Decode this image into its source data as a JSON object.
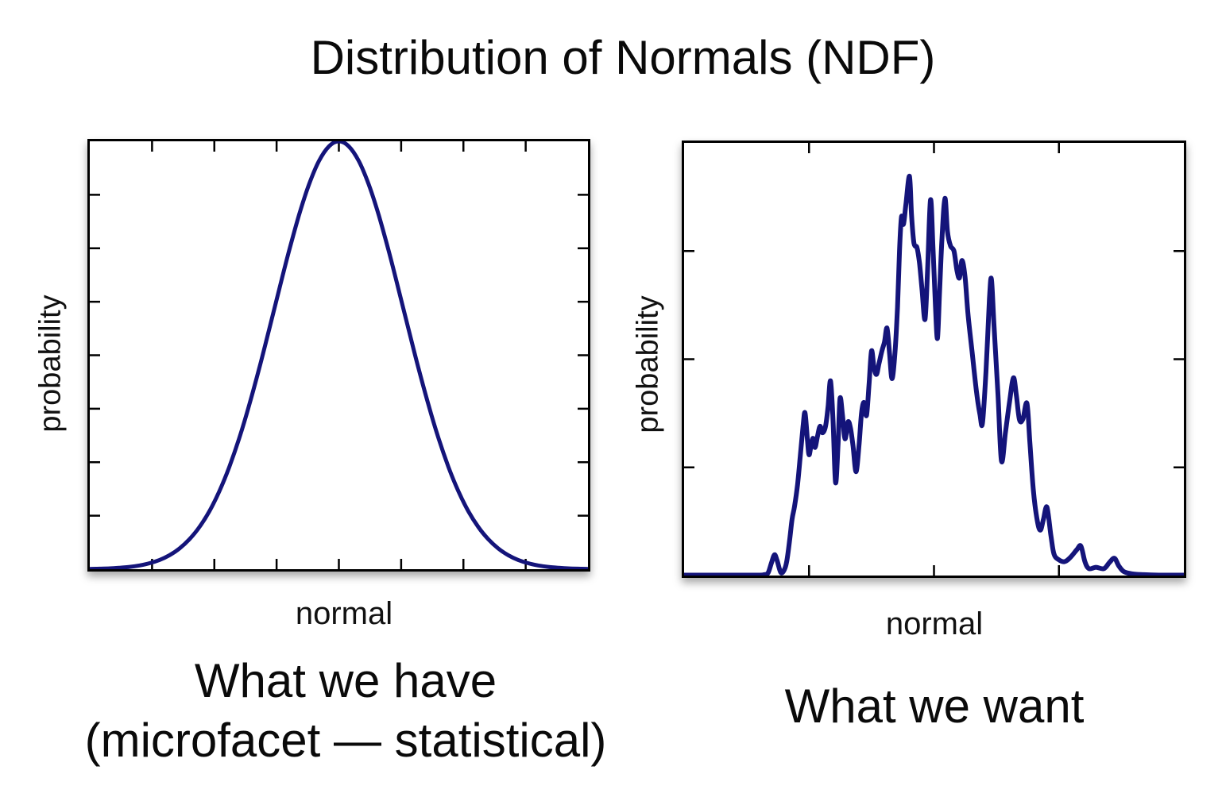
{
  "title": "Distribution of Normals (NDF)",
  "colors": {
    "background": "#ffffff",
    "frame": "#000000",
    "text": "#0a0a0a",
    "curve": "#14147a"
  },
  "chart_data": [
    {
      "id": "what-we-have",
      "type": "line",
      "xlabel": "normal",
      "ylabel": "probability",
      "caption_line1": "What we have",
      "caption_line2": "(microfacet — statistical)",
      "line_color": "#14147a",
      "line_width": 5,
      "x_tick_count": 7,
      "y_tick_count": 7,
      "x_range": [
        0,
        1
      ],
      "y_range": [
        0,
        1
      ],
      "gaussian": {
        "mean": 0.5,
        "sigma": 0.13,
        "amplitude": 1.0
      },
      "points": [
        [
          0.0,
          0.0006
        ],
        [
          0.02,
          0.0011
        ],
        [
          0.04,
          0.0019
        ],
        [
          0.06,
          0.0033
        ],
        [
          0.08,
          0.0054
        ],
        [
          0.1,
          0.0088
        ],
        [
          0.12,
          0.0139
        ],
        [
          0.14,
          0.0216
        ],
        [
          0.16,
          0.0327
        ],
        [
          0.18,
          0.0484
        ],
        [
          0.2,
          0.0699
        ],
        [
          0.22,
          0.0983
        ],
        [
          0.24,
          0.1353
        ],
        [
          0.26,
          0.1819
        ],
        [
          0.28,
          0.2388
        ],
        [
          0.3,
          0.3062
        ],
        [
          0.32,
          0.3835
        ],
        [
          0.34,
          0.469
        ],
        [
          0.36,
          0.56
        ],
        [
          0.38,
          0.653
        ],
        [
          0.4,
          0.7439
        ],
        [
          0.42,
          0.8275
        ],
        [
          0.44,
          0.899
        ],
        [
          0.46,
          0.9538
        ],
        [
          0.48,
          0.9882
        ],
        [
          0.5,
          1.0
        ],
        [
          0.52,
          0.9882
        ],
        [
          0.54,
          0.9538
        ],
        [
          0.56,
          0.899
        ],
        [
          0.58,
          0.8275
        ],
        [
          0.6,
          0.7439
        ],
        [
          0.62,
          0.653
        ],
        [
          0.64,
          0.56
        ],
        [
          0.66,
          0.469
        ],
        [
          0.68,
          0.3835
        ],
        [
          0.7,
          0.3062
        ],
        [
          0.72,
          0.2388
        ],
        [
          0.74,
          0.1819
        ],
        [
          0.76,
          0.1353
        ],
        [
          0.78,
          0.0983
        ],
        [
          0.8,
          0.0699
        ],
        [
          0.82,
          0.0484
        ],
        [
          0.84,
          0.0327
        ],
        [
          0.86,
          0.0216
        ],
        [
          0.88,
          0.0139
        ],
        [
          0.9,
          0.0088
        ],
        [
          0.92,
          0.0054
        ],
        [
          0.94,
          0.0033
        ],
        [
          0.96,
          0.0019
        ],
        [
          0.98,
          0.0011
        ],
        [
          1.0,
          0.0006
        ]
      ]
    },
    {
      "id": "what-we-want",
      "type": "line",
      "xlabel": "normal",
      "ylabel": "probability",
      "caption_line1": "What we want",
      "line_color": "#14147a",
      "line_width": 6,
      "x_tick_count": 3,
      "y_tick_count": 3,
      "x_range": [
        0,
        1
      ],
      "y_range": [
        0,
        1
      ],
      "points": [
        [
          0.0,
          0.001
        ],
        [
          0.1,
          0.001
        ],
        [
          0.149,
          0.001
        ],
        [
          0.16,
          0.002
        ],
        [
          0.168,
          0.006
        ],
        [
          0.175,
          0.03
        ],
        [
          0.181,
          0.048
        ],
        [
          0.186,
          0.035
        ],
        [
          0.193,
          0.008
        ],
        [
          0.199,
          0.01
        ],
        [
          0.205,
          0.03
        ],
        [
          0.211,
          0.08
        ],
        [
          0.216,
          0.13
        ],
        [
          0.221,
          0.16
        ],
        [
          0.227,
          0.21
        ],
        [
          0.232,
          0.27
        ],
        [
          0.238,
          0.345
        ],
        [
          0.242,
          0.376
        ],
        [
          0.247,
          0.31
        ],
        [
          0.25,
          0.279
        ],
        [
          0.254,
          0.3
        ],
        [
          0.258,
          0.317
        ],
        [
          0.262,
          0.296
        ],
        [
          0.267,
          0.322
        ],
        [
          0.272,
          0.345
        ],
        [
          0.277,
          0.33
        ],
        [
          0.283,
          0.345
        ],
        [
          0.288,
          0.39
        ],
        [
          0.293,
          0.45
        ],
        [
          0.298,
          0.36
        ],
        [
          0.303,
          0.215
        ],
        [
          0.308,
          0.3
        ],
        [
          0.312,
          0.409
        ],
        [
          0.317,
          0.37
        ],
        [
          0.322,
          0.316
        ],
        [
          0.328,
          0.355
        ],
        [
          0.333,
          0.34
        ],
        [
          0.338,
          0.3
        ],
        [
          0.344,
          0.24
        ],
        [
          0.35,
          0.3
        ],
        [
          0.355,
          0.375
        ],
        [
          0.36,
          0.4
        ],
        [
          0.365,
          0.37
        ],
        [
          0.37,
          0.44
        ],
        [
          0.375,
          0.519
        ],
        [
          0.38,
          0.48
        ],
        [
          0.385,
          0.465
        ],
        [
          0.39,
          0.49
        ],
        [
          0.396,
          0.52
        ],
        [
          0.401,
          0.54
        ],
        [
          0.406,
          0.572
        ],
        [
          0.411,
          0.515
        ],
        [
          0.416,
          0.455
        ],
        [
          0.422,
          0.515
        ],
        [
          0.427,
          0.62
        ],
        [
          0.431,
          0.75
        ],
        [
          0.435,
          0.829
        ],
        [
          0.439,
          0.812
        ],
        [
          0.444,
          0.86
        ],
        [
          0.451,
          0.923
        ],
        [
          0.455,
          0.835
        ],
        [
          0.46,
          0.768
        ],
        [
          0.466,
          0.758
        ],
        [
          0.471,
          0.722
        ],
        [
          0.476,
          0.662
        ],
        [
          0.482,
          0.592
        ],
        [
          0.487,
          0.7
        ],
        [
          0.493,
          0.868
        ],
        [
          0.498,
          0.76
        ],
        [
          0.503,
          0.62
        ],
        [
          0.507,
          0.548
        ],
        [
          0.511,
          0.65
        ],
        [
          0.516,
          0.78
        ],
        [
          0.522,
          0.872
        ],
        [
          0.527,
          0.795
        ],
        [
          0.533,
          0.762
        ],
        [
          0.54,
          0.75
        ],
        [
          0.546,
          0.705
        ],
        [
          0.551,
          0.688
        ],
        [
          0.556,
          0.728
        ],
        [
          0.562,
          0.692
        ],
        [
          0.568,
          0.605
        ],
        [
          0.576,
          0.52
        ],
        [
          0.585,
          0.425
        ],
        [
          0.592,
          0.372
        ],
        [
          0.597,
          0.352
        ],
        [
          0.604,
          0.47
        ],
        [
          0.611,
          0.64
        ],
        [
          0.615,
          0.685
        ],
        [
          0.62,
          0.58
        ],
        [
          0.628,
          0.42
        ],
        [
          0.635,
          0.265
        ],
        [
          0.643,
          0.33
        ],
        [
          0.651,
          0.4
        ],
        [
          0.659,
          0.457
        ],
        [
          0.665,
          0.415
        ],
        [
          0.671,
          0.36
        ],
        [
          0.678,
          0.362
        ],
        [
          0.686,
          0.398
        ],
        [
          0.692,
          0.305
        ],
        [
          0.699,
          0.195
        ],
        [
          0.707,
          0.125
        ],
        [
          0.713,
          0.105
        ],
        [
          0.719,
          0.13
        ],
        [
          0.726,
          0.158
        ],
        [
          0.734,
          0.092
        ],
        [
          0.74,
          0.05
        ],
        [
          0.749,
          0.037
        ],
        [
          0.761,
          0.032
        ],
        [
          0.773,
          0.042
        ],
        [
          0.786,
          0.06
        ],
        [
          0.794,
          0.068
        ],
        [
          0.802,
          0.032
        ],
        [
          0.81,
          0.016
        ],
        [
          0.824,
          0.019
        ],
        [
          0.84,
          0.016
        ],
        [
          0.851,
          0.03
        ],
        [
          0.861,
          0.04
        ],
        [
          0.87,
          0.022
        ],
        [
          0.88,
          0.009
        ],
        [
          0.896,
          0.004
        ],
        [
          0.92,
          0.002
        ],
        [
          0.95,
          0.001
        ],
        [
          1.0,
          0.001
        ]
      ]
    }
  ]
}
